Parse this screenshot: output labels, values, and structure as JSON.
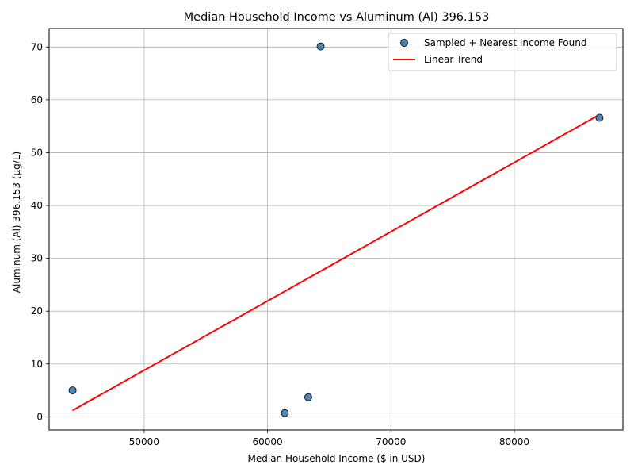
{
  "chart_data": {
    "type": "scatter",
    "title": "Median Household Income vs Aluminum (Al) 396.153",
    "xlabel": "Median Household Income ($ in USD)",
    "ylabel": "Aluminum (Al) 396.153 (µg/L)",
    "xlim": [
      42300,
      88800
    ],
    "ylim": [
      -2.5,
      73.5
    ],
    "xticks": [
      50000,
      60000,
      70000,
      80000
    ],
    "yticks": [
      0,
      10,
      20,
      30,
      40,
      50,
      60,
      70
    ],
    "grid": true,
    "legend_position": "top-right",
    "series": [
      {
        "name": "Sampled + Nearest Income Found",
        "kind": "scatter",
        "color": "#4682b4",
        "edge_color": "#1a1a1a",
        "points": [
          {
            "x": 44200,
            "y": 5.0
          },
          {
            "x": 61400,
            "y": 0.7
          },
          {
            "x": 63300,
            "y": 3.7
          },
          {
            "x": 64300,
            "y": 70.1
          },
          {
            "x": 86900,
            "y": 56.6
          }
        ]
      },
      {
        "name": "Linear Trend",
        "kind": "line",
        "color": "#ff0000",
        "points": [
          {
            "x": 44200,
            "y": 1.2
          },
          {
            "x": 86900,
            "y": 57.2
          }
        ]
      }
    ]
  }
}
